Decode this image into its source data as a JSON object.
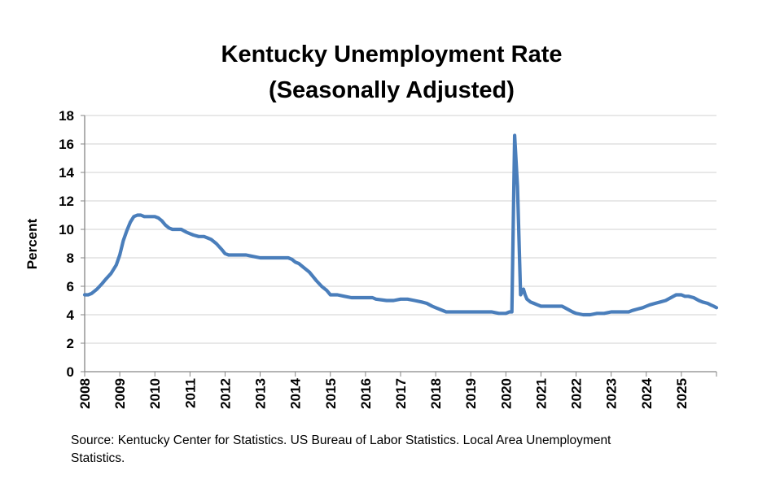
{
  "chart_data": {
    "type": "line",
    "title": "Kentucky Unemployment Rate",
    "subtitle": "(Seasonally Adjusted)",
    "xlabel": "",
    "ylabel": "Percent",
    "ylim": [
      0,
      18
    ],
    "yticks": [
      0,
      2,
      4,
      6,
      8,
      10,
      12,
      14,
      16,
      18
    ],
    "xlim": [
      2008,
      2026
    ],
    "xtick_labels": [
      "2008",
      "2009",
      "2010",
      "2011",
      "2012",
      "2013",
      "2014",
      "2015",
      "2016",
      "2017",
      "2018",
      "2019",
      "2020",
      "2021",
      "2022",
      "2023",
      "2024",
      "2025"
    ],
    "grid": true,
    "series": [
      {
        "name": "Kentucky Unemployment Rate",
        "color": "#4a7ebb",
        "x": [
          2008.0,
          2008.1,
          2008.2,
          2008.35,
          2008.5,
          2008.6,
          2008.75,
          2008.9,
          2009.0,
          2009.1,
          2009.2,
          2009.3,
          2009.4,
          2009.5,
          2009.6,
          2009.7,
          2009.8,
          2009.9,
          2010.0,
          2010.1,
          2010.2,
          2010.3,
          2010.4,
          2010.5,
          2010.6,
          2010.75,
          2010.9,
          2011.0,
          2011.1,
          2011.25,
          2011.4,
          2011.6,
          2011.75,
          2011.9,
          2012.0,
          2012.1,
          2012.2,
          2012.4,
          2012.6,
          2012.8,
          2013.0,
          2013.3,
          2013.6,
          2013.8,
          2013.9,
          2014.0,
          2014.1,
          2014.25,
          2014.4,
          2014.6,
          2014.75,
          2014.9,
          2015.0,
          2015.2,
          2015.4,
          2015.6,
          2015.8,
          2016.0,
          2016.2,
          2016.3,
          2016.6,
          2016.8,
          2017.0,
          2017.2,
          2017.4,
          2017.6,
          2017.75,
          2017.9,
          2018.0,
          2018.3,
          2018.6,
          2018.9,
          2019.1,
          2019.4,
          2019.6,
          2019.8,
          2020.0,
          2020.1,
          2020.17,
          2020.25,
          2020.33,
          2020.42,
          2020.5,
          2020.55,
          2020.6,
          2020.7,
          2020.8,
          2020.9,
          2021.0,
          2021.2,
          2021.4,
          2021.6,
          2021.75,
          2021.9,
          2022.0,
          2022.2,
          2022.4,
          2022.6,
          2022.8,
          2023.0,
          2023.3,
          2023.5,
          2023.6,
          2023.75,
          2023.9,
          2024.0,
          2024.1,
          2024.25,
          2024.4,
          2024.55,
          2024.7,
          2024.85,
          2025.0,
          2025.1,
          2025.2,
          2025.35,
          2025.5,
          2025.6,
          2025.75,
          2025.83,
          2025.92,
          2026.0
        ],
        "values": [
          5.4,
          5.4,
          5.5,
          5.8,
          6.2,
          6.5,
          6.9,
          7.5,
          8.2,
          9.2,
          9.9,
          10.5,
          10.9,
          11.0,
          11.0,
          10.9,
          10.9,
          10.9,
          10.9,
          10.8,
          10.6,
          10.3,
          10.1,
          10.0,
          10.0,
          10.0,
          9.8,
          9.7,
          9.6,
          9.5,
          9.5,
          9.3,
          9.0,
          8.6,
          8.3,
          8.2,
          8.2,
          8.2,
          8.2,
          8.1,
          8.0,
          8.0,
          8.0,
          8.0,
          7.9,
          7.7,
          7.6,
          7.3,
          7.0,
          6.4,
          6.0,
          5.7,
          5.4,
          5.4,
          5.3,
          5.2,
          5.2,
          5.2,
          5.2,
          5.1,
          5.0,
          5.0,
          5.1,
          5.1,
          5.0,
          4.9,
          4.8,
          4.6,
          4.5,
          4.2,
          4.2,
          4.2,
          4.2,
          4.2,
          4.2,
          4.1,
          4.1,
          4.2,
          4.2,
          16.6,
          13.0,
          5.4,
          5.8,
          5.4,
          5.1,
          4.9,
          4.8,
          4.7,
          4.6,
          4.6,
          4.6,
          4.6,
          4.4,
          4.2,
          4.1,
          4.0,
          4.0,
          4.1,
          4.1,
          4.2,
          4.2,
          4.2,
          4.3,
          4.4,
          4.5,
          4.6,
          4.7,
          4.8,
          4.9,
          5.0,
          5.2,
          5.4,
          5.4,
          5.3,
          5.3,
          5.2,
          5.0,
          4.9,
          4.8,
          4.7,
          4.6,
          4.5
        ]
      }
    ]
  },
  "source_note": "Source: Kentucky Center for Statistics. US Bureau of Labor Statistics. Local Area Unemployment Statistics."
}
